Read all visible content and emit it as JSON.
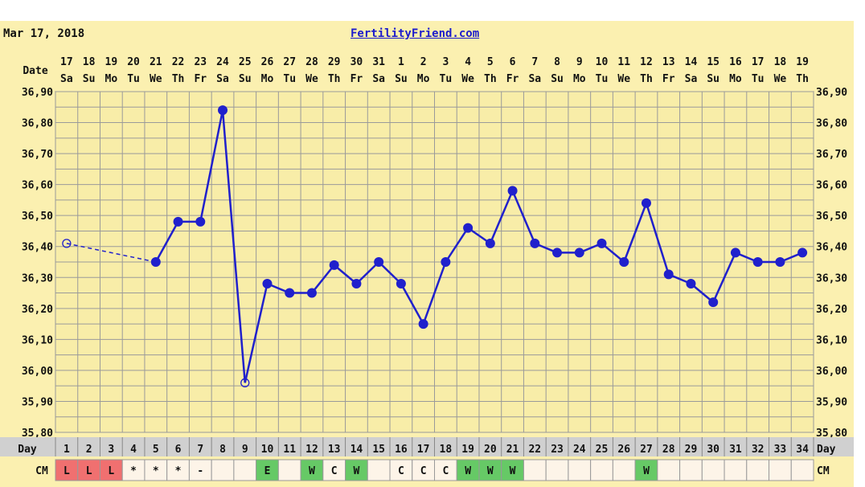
{
  "header": {
    "date": "Mar 17, 2018",
    "site": "FertilityFriend.com"
  },
  "row_labels": {
    "date": "Date",
    "day": "Day",
    "cm": "CM"
  },
  "colors": {
    "background": "#fbf0b0",
    "grid_area": "#f8eda8",
    "grid_line": "#9a9a9a",
    "temp_line": "#2020cc",
    "day_row": "#d0d0d0",
    "cm_cell": "#fdf4e8",
    "cm_red": "#f07070",
    "cm_green": "#66c966"
  },
  "chart_data": {
    "type": "line",
    "date_labels": [
      "17",
      "18",
      "19",
      "20",
      "21",
      "22",
      "23",
      "24",
      "25",
      "26",
      "27",
      "28",
      "29",
      "30",
      "31",
      "1",
      "2",
      "3",
      "4",
      "5",
      "6",
      "7",
      "8",
      "9",
      "10",
      "11",
      "12",
      "13",
      "14",
      "15",
      "16",
      "17",
      "18",
      "19"
    ],
    "weekday_labels": [
      "Sa",
      "Su",
      "Mo",
      "Tu",
      "We",
      "Th",
      "Fr",
      "Sa",
      "Su",
      "Mo",
      "Tu",
      "We",
      "Th",
      "Fr",
      "Sa",
      "Su",
      "Mo",
      "Tu",
      "We",
      "Th",
      "Fr",
      "Sa",
      "Su",
      "Mo",
      "Tu",
      "We",
      "Th",
      "Fr",
      "Sa",
      "Su",
      "Mo",
      "Tu",
      "We",
      "Th"
    ],
    "days": [
      1,
      2,
      3,
      4,
      5,
      6,
      7,
      8,
      9,
      10,
      11,
      12,
      13,
      14,
      15,
      16,
      17,
      18,
      19,
      20,
      21,
      22,
      23,
      24,
      25,
      26,
      27,
      28,
      29,
      30,
      31,
      32,
      33,
      34
    ],
    "temps": [
      36.41,
      null,
      null,
      null,
      36.35,
      36.48,
      36.48,
      36.84,
      35.96,
      36.28,
      36.25,
      36.25,
      36.34,
      36.28,
      36.35,
      36.28,
      36.15,
      36.35,
      36.46,
      36.41,
      36.58,
      36.41,
      36.38,
      36.38,
      36.41,
      36.35,
      36.54,
      36.31,
      36.28,
      36.22,
      36.38,
      36.35,
      36.35,
      36.38
    ],
    "open_markers": [
      1,
      9
    ],
    "dashed_segments": [
      [
        1,
        5
      ]
    ],
    "y_ticks": [
      "36,90",
      "36,80",
      "36,70",
      "36,60",
      "36,50",
      "36,40",
      "36,30",
      "36,20",
      "36,10",
      "36,00",
      "35,90",
      "35,80"
    ],
    "ylim": [
      35.8,
      36.9
    ],
    "grid": true
  },
  "cm": [
    "L",
    "L",
    "L",
    "*",
    "*",
    "*",
    "-",
    "",
    "",
    "E",
    "",
    "W",
    "C",
    "W",
    "",
    "C",
    "C",
    "C",
    "W",
    "W",
    "W",
    "",
    "",
    "",
    "",
    "",
    "W",
    "",
    "",
    "",
    "",
    "",
    "",
    ""
  ],
  "cm_colors": [
    "red",
    "red",
    "red",
    "",
    "",
    "",
    "",
    "",
    "",
    "green",
    "",
    "green",
    "",
    "green",
    "",
    "",
    "",
    "",
    "green",
    "green",
    "green",
    "",
    "",
    "",
    "",
    "",
    "green",
    "",
    "",
    "",
    "",
    "",
    "",
    ""
  ]
}
